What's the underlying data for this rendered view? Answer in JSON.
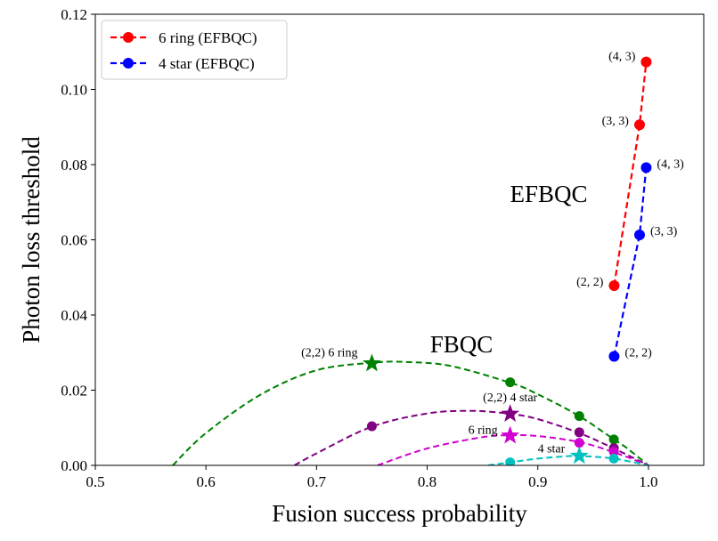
{
  "chart_data": {
    "type": "line",
    "xlabel": "Fusion success probability",
    "ylabel": "Photon loss threshold",
    "xlim": [
      0.5,
      1.05
    ],
    "ylim": [
      0,
      0.12
    ],
    "xticks": [
      "0.5",
      "0.6",
      "0.7",
      "0.8",
      "0.9",
      "1.0"
    ],
    "yticks": [
      "0.00",
      "0.02",
      "0.04",
      "0.06",
      "0.08",
      "0.10",
      "0.12"
    ],
    "grid": false,
    "legend_position": "top-left",
    "series": [
      {
        "name": "6 ring (EFBQC)",
        "color": "#ff0000",
        "line_style": "dashed",
        "marker": "circle",
        "x": [
          0.969,
          0.992,
          0.998
        ],
        "y": [
          0.0478,
          0.0906,
          0.1073
        ],
        "labels": [
          "(2, 2)",
          "(3, 3)",
          "(4, 3)"
        ]
      },
      {
        "name": "4 star (EFBQC)",
        "color": "#0000ff",
        "line_style": "dashed",
        "marker": "circle",
        "x": [
          0.969,
          0.992,
          0.998
        ],
        "y": [
          0.029,
          0.0613,
          0.0792
        ],
        "labels": [
          "(2, 2)",
          "(3, 3)",
          "(4, 3)"
        ]
      }
    ],
    "fbqc_curves": [
      {
        "color": "#008000",
        "curve_x": [
          0.57,
          0.6,
          0.65,
          0.7,
          0.75,
          0.78,
          0.82,
          0.875,
          0.9,
          0.9375,
          0.96875,
          0.98,
          1.0
        ],
        "curve_y": [
          0.0,
          0.0086,
          0.0189,
          0.0253,
          0.0273,
          0.0275,
          0.0265,
          0.022,
          0.0189,
          0.0131,
          0.0069,
          0.0047,
          0.0
        ],
        "marker_x": [
          0.75,
          0.875,
          0.9375,
          0.96875
        ],
        "marker_y": [
          0.0271,
          0.0221,
          0.0131,
          0.0069
        ],
        "star_index": 0,
        "star_label": "(2,2) 6 ring"
      },
      {
        "color": "#800080",
        "curve_x": [
          0.68,
          0.7,
          0.75,
          0.8,
          0.84,
          0.875,
          0.9,
          0.9375,
          0.96875,
          1.0
        ],
        "curve_y": [
          0.0,
          0.0032,
          0.0103,
          0.0138,
          0.0145,
          0.0137,
          0.0123,
          0.0086,
          0.0045,
          0.0
        ],
        "marker_x": [
          0.75,
          0.875,
          0.9375,
          0.96875
        ],
        "marker_y": [
          0.0104,
          0.0137,
          0.0088,
          0.0046
        ],
        "star_index": 1,
        "star_label": "(2,2) 4 star"
      },
      {
        "color": "#d000d0",
        "curve_x": [
          0.755,
          0.8,
          0.85,
          0.875,
          0.9,
          0.9375,
          0.96875,
          1.0
        ],
        "curve_y": [
          0.0,
          0.0045,
          0.0075,
          0.008,
          0.0078,
          0.0062,
          0.0035,
          0.0
        ],
        "marker_x": [
          0.875,
          0.9375,
          0.96875
        ],
        "marker_y": [
          0.0079,
          0.006,
          0.0036
        ],
        "star_index": 0,
        "star_label": "6 ring"
      },
      {
        "color": "#00c0c0",
        "curve_x": [
          0.855,
          0.875,
          0.9,
          0.93,
          0.9375,
          0.96875,
          1.0
        ],
        "curve_y": [
          0.0,
          0.0008,
          0.0018,
          0.0025,
          0.0025,
          0.0018,
          0.0
        ],
        "marker_x": [
          0.875,
          0.9375,
          0.96875
        ],
        "marker_y": [
          0.0008,
          0.0025,
          0.0018
        ],
        "star_index": 1,
        "star_label": "4 star"
      }
    ],
    "annotations": [
      "EFBQC",
      "FBQC"
    ]
  }
}
